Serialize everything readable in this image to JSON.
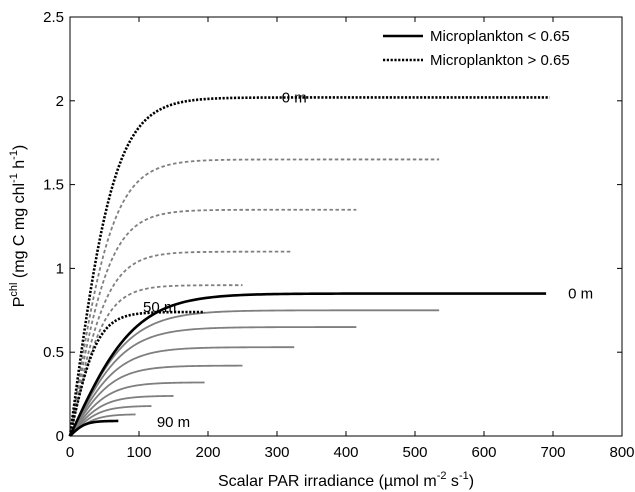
{
  "chart_data": {
    "type": "line",
    "title": "",
    "xlabel": "Scalar PAR irradiance (µmol m-2 s-1)",
    "xlabel_parts": {
      "main": "Scalar PAR irradiance (µmol m",
      "sup1": "-2",
      "mid": " s",
      "sup2": "-1",
      "end": ")"
    },
    "ylabel_parts": {
      "p": "P",
      "chl_sup": "chl",
      "main": " (mg C mg chl",
      "sup1": "-1",
      "mid": " h",
      "sup2": "-1",
      "end": ")"
    },
    "xlim": [
      0,
      800
    ],
    "ylim": [
      0,
      2.5
    ],
    "xticks": [
      "0",
      "100",
      "200",
      "300",
      "400",
      "500",
      "600",
      "700",
      "800"
    ],
    "yticks": [
      "0",
      "0.5",
      "1",
      "1.5",
      "2",
      "2.5"
    ],
    "grid": false,
    "legend": {
      "placement": "top-right",
      "entries": [
        {
          "label": "Microplankton < 0.65",
          "style": "solid"
        },
        {
          "label": "Microplankton > 0.65",
          "style": "dotted"
        }
      ]
    },
    "annotations": [
      {
        "text": "0 m",
        "x": 325,
        "y": 2.02
      },
      {
        "text": "0 m",
        "x": 740,
        "y": 0.85
      },
      {
        "text": "50 m",
        "x": 130,
        "y": 0.77
      },
      {
        "text": "90 m",
        "x": 150,
        "y": 0.085
      }
    ],
    "series": [
      {
        "group": "dotted",
        "emphasis": "bold",
        "pmax": 2.02,
        "ik": 65,
        "xmax": 695
      },
      {
        "group": "dotted",
        "emphasis": "light",
        "pmax": 1.65,
        "ik": 62,
        "xmax": 535
      },
      {
        "group": "dotted",
        "emphasis": "light",
        "pmax": 1.35,
        "ik": 58,
        "xmax": 415
      },
      {
        "group": "dotted",
        "emphasis": "light",
        "pmax": 1.1,
        "ik": 55,
        "xmax": 320
      },
      {
        "group": "dotted",
        "emphasis": "light",
        "pmax": 0.9,
        "ik": 50,
        "xmax": 250
      },
      {
        "group": "dotted",
        "emphasis": "bold",
        "pmax": 0.74,
        "ik": 40,
        "xmax": 195
      },
      {
        "group": "solid",
        "emphasis": "bold",
        "pmax": 0.85,
        "ik": 95,
        "xmax": 690
      },
      {
        "group": "solid",
        "emphasis": "light",
        "pmax": 0.75,
        "ik": 85,
        "xmax": 535
      },
      {
        "group": "solid",
        "emphasis": "light",
        "pmax": 0.65,
        "ik": 78,
        "xmax": 415
      },
      {
        "group": "solid",
        "emphasis": "light",
        "pmax": 0.53,
        "ik": 70,
        "xmax": 325
      },
      {
        "group": "solid",
        "emphasis": "light",
        "pmax": 0.42,
        "ik": 62,
        "xmax": 250
      },
      {
        "group": "solid",
        "emphasis": "light",
        "pmax": 0.32,
        "ik": 55,
        "xmax": 195
      },
      {
        "group": "solid",
        "emphasis": "light",
        "pmax": 0.24,
        "ik": 48,
        "xmax": 150
      },
      {
        "group": "solid",
        "emphasis": "light",
        "pmax": 0.18,
        "ik": 42,
        "xmax": 118
      },
      {
        "group": "solid",
        "emphasis": "light",
        "pmax": 0.13,
        "ik": 36,
        "xmax": 95
      },
      {
        "group": "solid",
        "emphasis": "bold",
        "pmax": 0.09,
        "ik": 22,
        "xmax": 70
      }
    ]
  }
}
